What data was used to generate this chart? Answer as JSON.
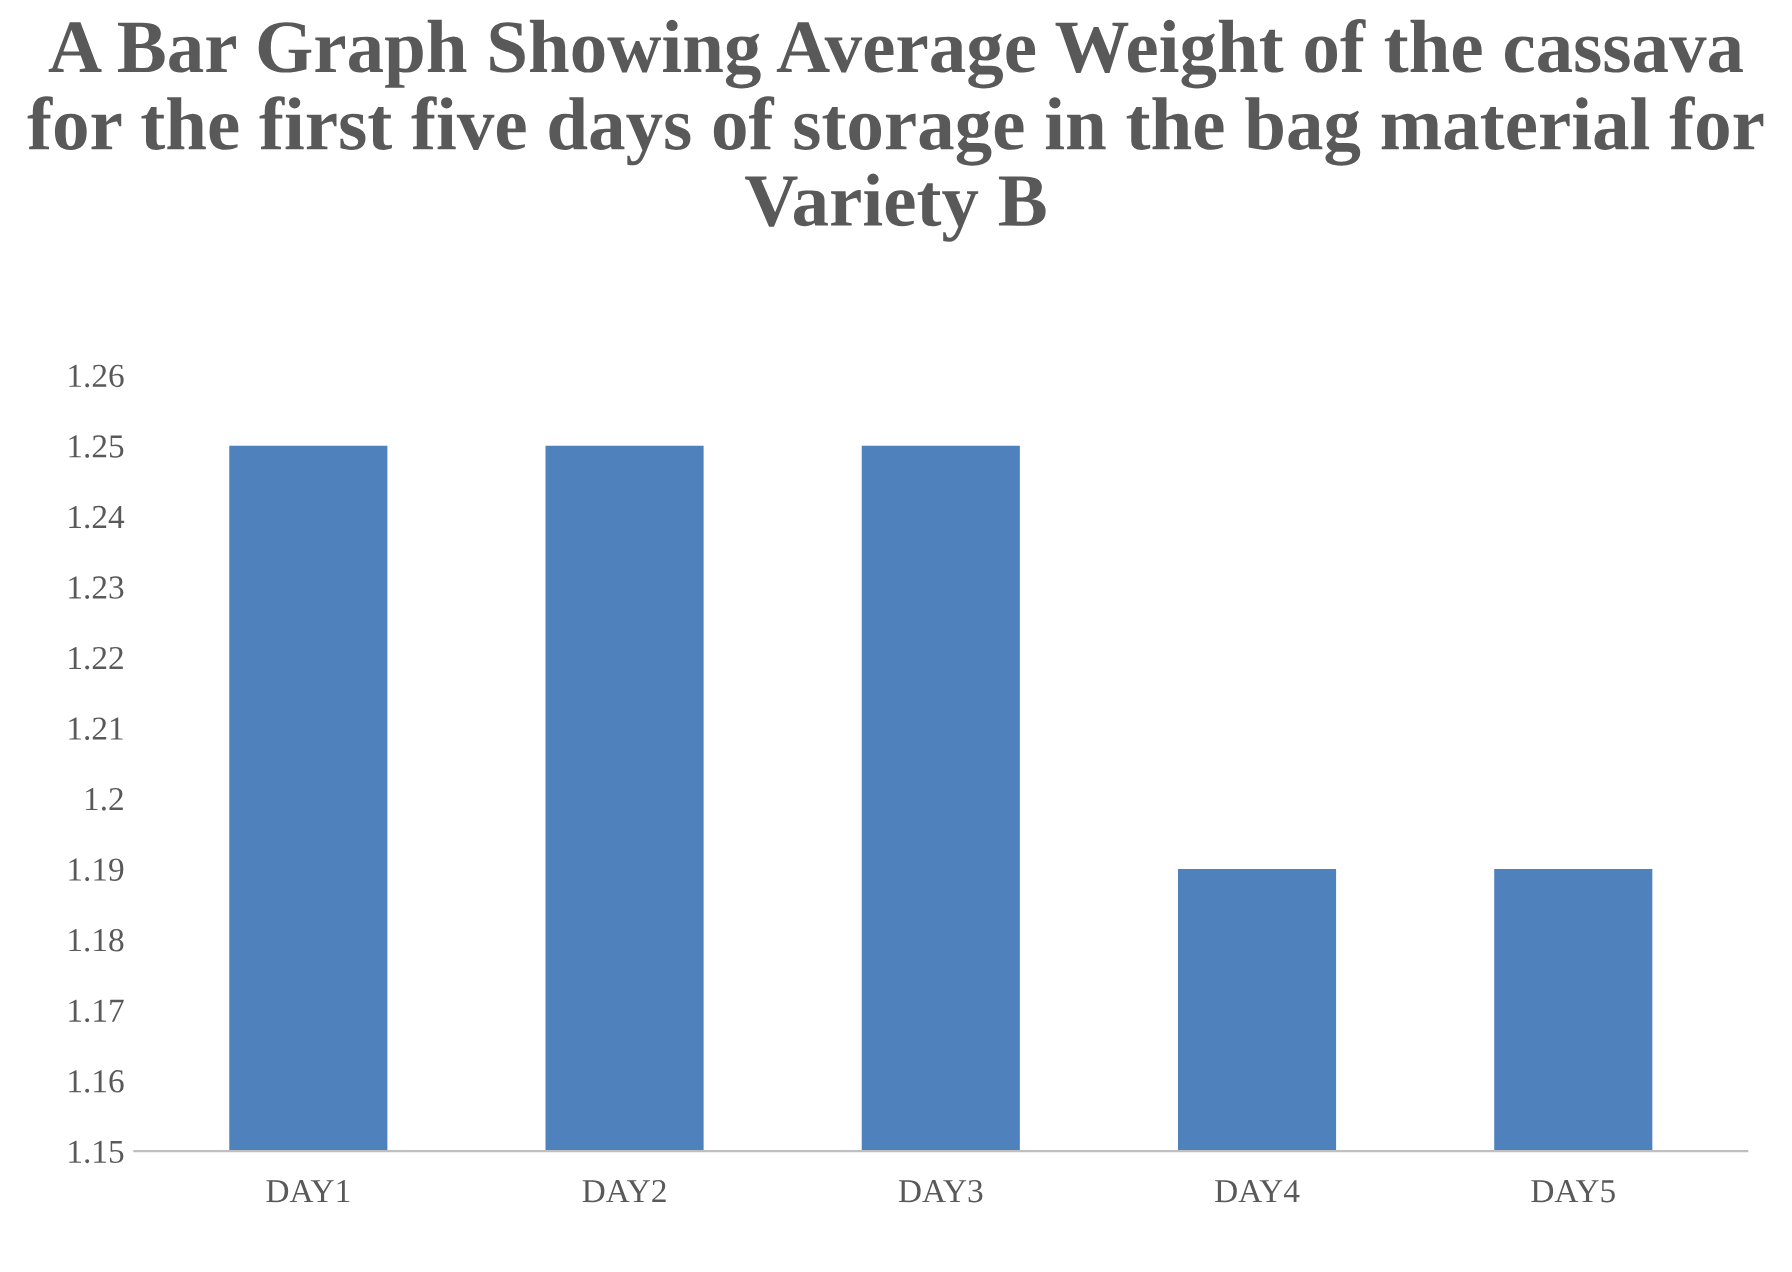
{
  "chart_data": {
    "type": "bar",
    "title": "A Bar Graph Showing Average Weight of the cassava for the first five days of storage in the bag material for Variety B",
    "categories": [
      "DAY1",
      "DAY2",
      "DAY3",
      "DAY4",
      "DAY5"
    ],
    "values": [
      1.25,
      1.25,
      1.25,
      1.19,
      1.19
    ],
    "color": "#4f81bd",
    "ylim": [
      1.15,
      1.26
    ],
    "yticks": [
      1.15,
      1.16,
      1.17,
      1.18,
      1.19,
      1.2,
      1.21,
      1.22,
      1.23,
      1.24,
      1.25,
      1.26
    ],
    "grid": false
  }
}
